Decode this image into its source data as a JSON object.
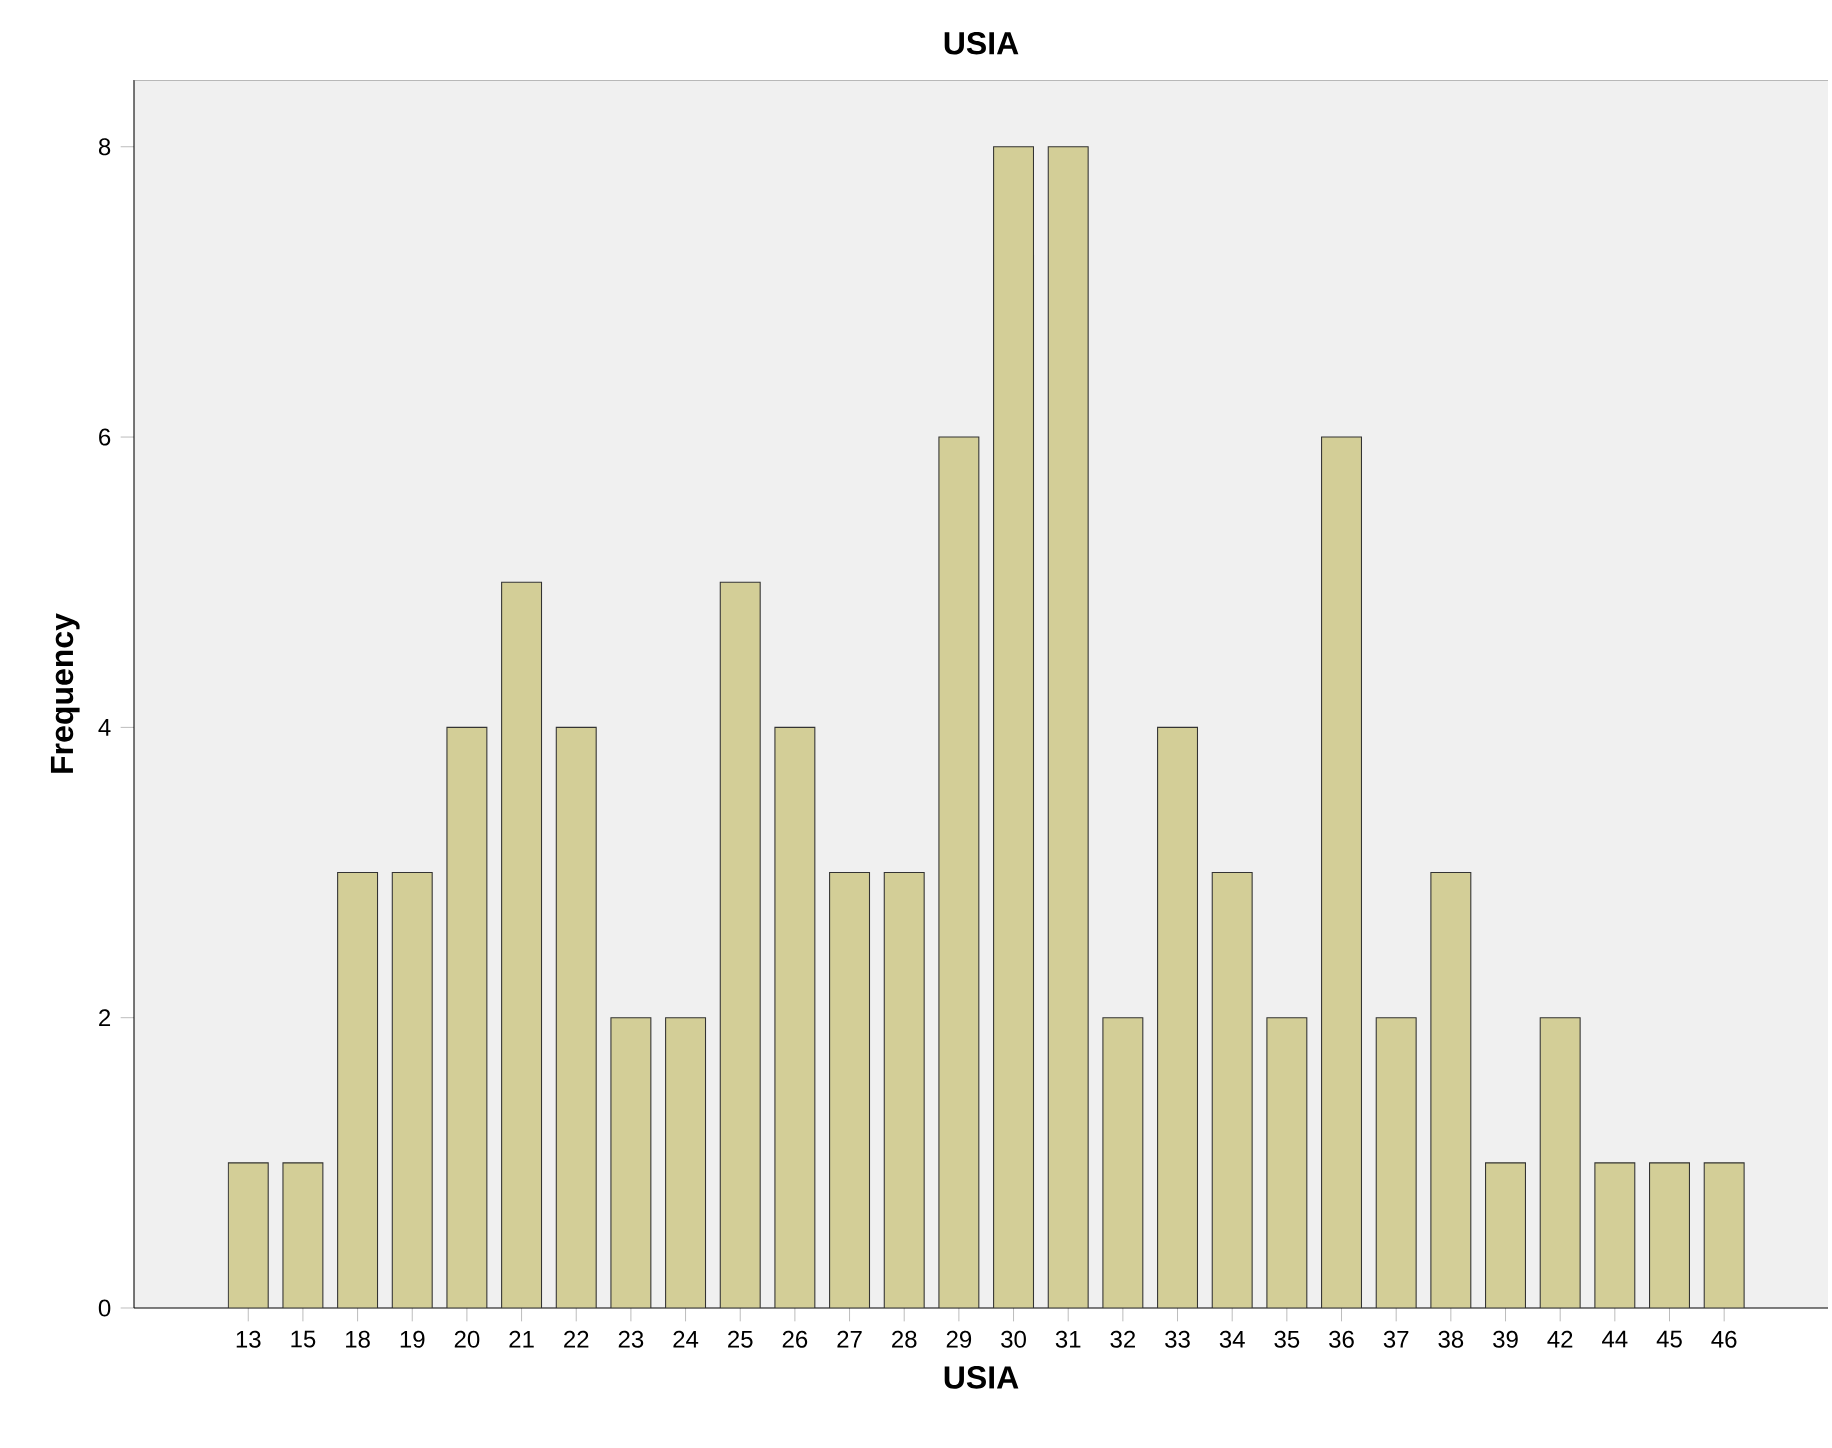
{
  "chart_data": {
    "type": "bar",
    "title": "USIA",
    "xlabel": "USIA",
    "ylabel": "Frequency",
    "categories": [
      "13",
      "15",
      "18",
      "19",
      "20",
      "21",
      "22",
      "23",
      "24",
      "25",
      "26",
      "27",
      "28",
      "29",
      "30",
      "31",
      "32",
      "33",
      "34",
      "35",
      "36",
      "37",
      "38",
      "39",
      "42",
      "44",
      "45",
      "46"
    ],
    "values": [
      1,
      1,
      3,
      3,
      4,
      5,
      4,
      2,
      2,
      5,
      4,
      3,
      3,
      6,
      8,
      8,
      2,
      4,
      3,
      2,
      6,
      2,
      3,
      1,
      2,
      1,
      1,
      1
    ],
    "color": "#d3ce97",
    "ylim": [
      0,
      8.46
    ],
    "yticks": [
      0,
      2,
      4,
      6,
      8
    ],
    "grid": false
  }
}
